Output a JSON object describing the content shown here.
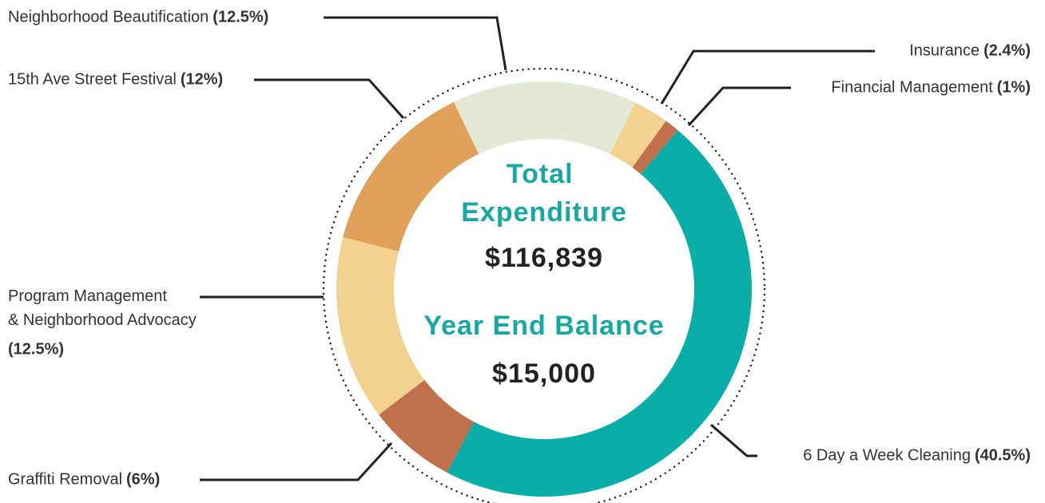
{
  "chart_data": {
    "type": "pie",
    "donut": true,
    "categories": [
      "Insurance",
      "Financial Management",
      "6 Day a Week Cleaning",
      "Graffiti Removal",
      "Program Management & Neighborhood Advocacy",
      "15th Ave Street Festival",
      "Neighborhood Beautification"
    ],
    "values": [
      2.4,
      1,
      40.5,
      6,
      12.5,
      12,
      12.5
    ],
    "value_labels": [
      "(2.4%)",
      "(1%)",
      "(40.5%)",
      "(6%)",
      "(12.5%)",
      "(12%)",
      "(12.5%)"
    ],
    "colors": [
      "#f2d28e",
      "#c0704a",
      "#0aaea8",
      "#c0704a",
      "#f2d28e",
      "#e0a05a",
      "#e3e9d4"
    ],
    "annotations": [
      "Total Expenditure",
      "$116,839",
      "Year End Balance",
      "$15,000"
    ]
  }
}
